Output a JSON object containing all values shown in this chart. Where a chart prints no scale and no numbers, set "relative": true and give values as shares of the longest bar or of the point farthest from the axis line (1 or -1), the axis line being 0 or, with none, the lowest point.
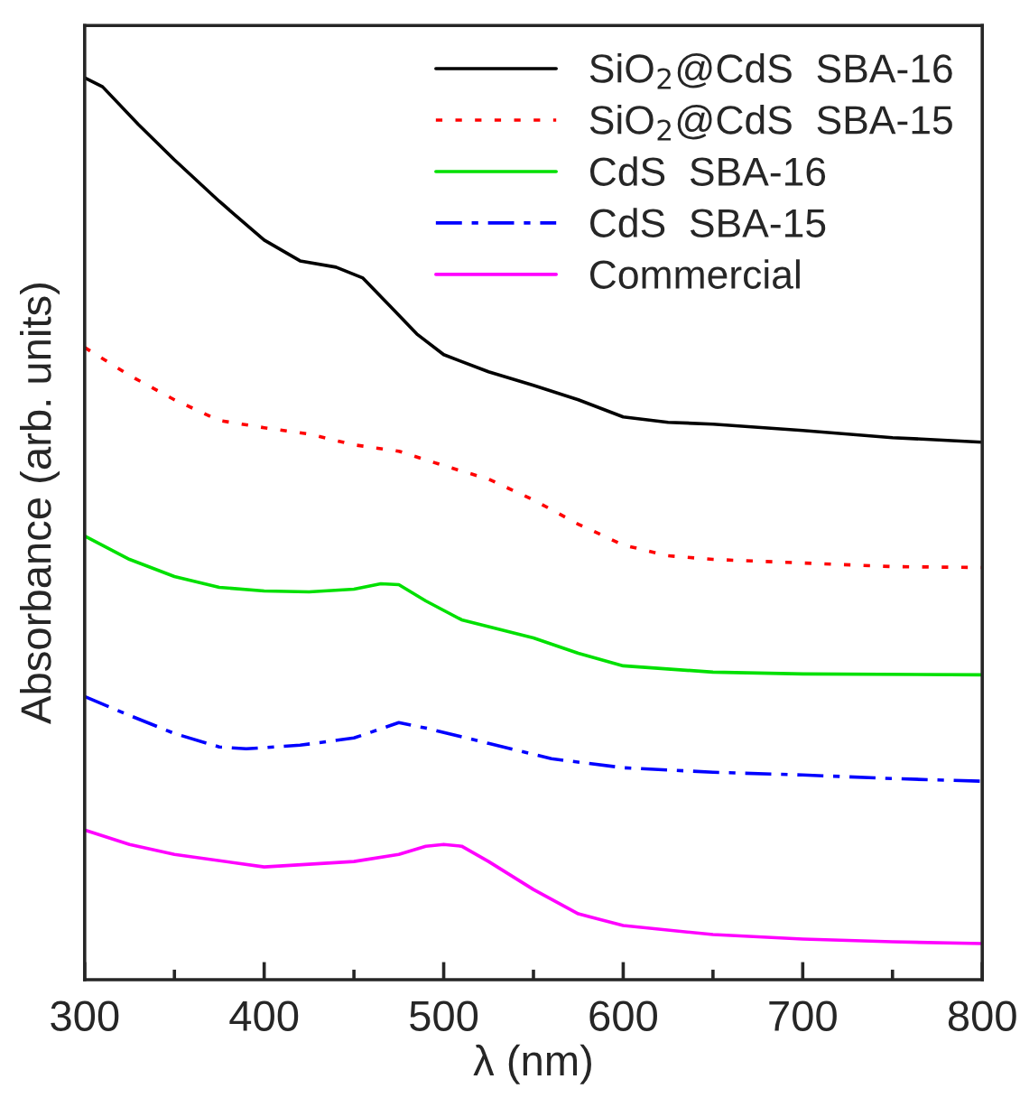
{
  "chart_data": {
    "type": "line",
    "relative": true,
    "xlabel": "λ (nm)",
    "ylabel": "Absorbance (arb. units)",
    "xlim": [
      300,
      800
    ],
    "xticks": [
      300,
      {
        "value": 350,
        "label": null
      },
      400,
      {
        "value": 450,
        "label": null
      },
      500,
      {
        "value": 550,
        "label": null
      },
      600,
      {
        "value": 650,
        "label": null
      },
      700,
      {
        "value": 750,
        "label": null
      },
      800
    ],
    "tick_labels": "x",
    "grid": false,
    "legend": "top right",
    "series": [
      {
        "name": "SiO$_{2}$@CdS  SBA-16",
        "color": "#000000",
        "line_style": "solid",
        "x": [
          300,
          310,
          330,
          350,
          375,
          400,
          420,
          440,
          455,
          470,
          485,
          500,
          525,
          550,
          575,
          600,
          625,
          650,
          700,
          750,
          800
        ],
        "values": [
          1.0,
          0.99,
          0.948,
          0.909,
          0.863,
          0.82,
          0.797,
          0.79,
          0.778,
          0.747,
          0.716,
          0.693,
          0.674,
          0.659,
          0.643,
          0.624,
          0.618,
          0.616,
          0.609,
          0.601,
          0.596
        ]
      },
      {
        "name": "SiO$_{2}$@CdS  SBA-15",
        "color": "#ff0000",
        "line_style": "dotted",
        "x": [
          300,
          325,
          350,
          375,
          400,
          425,
          450,
          475,
          500,
          525,
          550,
          575,
          600,
          625,
          650,
          700,
          750,
          800
        ],
        "values": [
          0.701,
          0.67,
          0.643,
          0.62,
          0.612,
          0.605,
          0.593,
          0.586,
          0.57,
          0.555,
          0.532,
          0.505,
          0.482,
          0.47,
          0.466,
          0.462,
          0.458,
          0.457
        ]
      },
      {
        "name": "CdS  SBA-16",
        "color": "#00e000",
        "line_style": "solid",
        "x": [
          300,
          325,
          350,
          375,
          400,
          425,
          450,
          465,
          475,
          490,
          510,
          550,
          575,
          600,
          650,
          700,
          800
        ],
        "values": [
          0.492,
          0.466,
          0.447,
          0.435,
          0.431,
          0.43,
          0.433,
          0.439,
          0.438,
          0.42,
          0.399,
          0.379,
          0.362,
          0.348,
          0.341,
          0.339,
          0.338
        ]
      },
      {
        "name": "CdS  SBA-15",
        "color": "#0000ff",
        "line_style": "dashdot",
        "x": [
          300,
          325,
          350,
          375,
          390,
          420,
          450,
          475,
          490,
          525,
          560,
          600,
          650,
          700,
          750,
          800
        ],
        "values": [
          0.314,
          0.293,
          0.273,
          0.258,
          0.256,
          0.26,
          0.268,
          0.285,
          0.279,
          0.262,
          0.245,
          0.235,
          0.23,
          0.227,
          0.223,
          0.22
        ]
      },
      {
        "name": "Commercial",
        "color": "#ff00ff",
        "line_style": "solid",
        "x": [
          300,
          325,
          350,
          400,
          450,
          475,
          490,
          500,
          510,
          525,
          550,
          575,
          600,
          650,
          700,
          750,
          800
        ],
        "values": [
          0.166,
          0.15,
          0.139,
          0.125,
          0.131,
          0.139,
          0.148,
          0.15,
          0.148,
          0.131,
          0.1,
          0.073,
          0.06,
          0.05,
          0.045,
          0.042,
          0.04
        ]
      }
    ]
  }
}
